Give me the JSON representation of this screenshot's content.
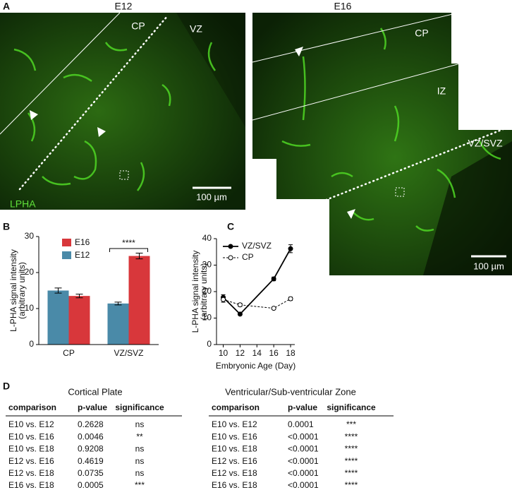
{
  "figure": {
    "panel_labels": [
      "A",
      "B",
      "C",
      "D"
    ],
    "images": [
      {
        "title": "E12",
        "labels": [
          "CP",
          "VZ",
          "LPHA"
        ],
        "scale_bar": "100 µm"
      },
      {
        "title": "E16",
        "labels": [
          "CP",
          "IZ",
          "VZ/SVZ"
        ],
        "scale_bar": "100 µm"
      }
    ]
  },
  "chart_data": [
    {
      "type": "bar",
      "y_label": [
        "L-PHA signal intensity",
        "(arbitrary units)"
      ],
      "categories": [
        "CP",
        "VZ/SVZ"
      ],
      "series": [
        {
          "name": "E16",
          "color": "#d8373b",
          "values": [
            13.5,
            24.6
          ],
          "errors": [
            0.5,
            0.8
          ]
        },
        {
          "name": "E12",
          "color": "#4a8aa8",
          "values": [
            15,
            11.4
          ],
          "errors": [
            0.7,
            0.4
          ]
        }
      ],
      "ylim": [
        0,
        30
      ],
      "yticks": [
        0,
        10,
        20,
        30
      ],
      "annotation": "****"
    },
    {
      "type": "line",
      "x_label": "Embryonic Age (Day)",
      "y_label": [
        "L-PHA signal intensity",
        "(arbitrary units)"
      ],
      "x": [
        10,
        12,
        16,
        18
      ],
      "series": [
        {
          "name": "VZ/SVZ",
          "color": "#000000",
          "dashed": false,
          "filled": true,
          "values": [
            17.8,
            11.5,
            24.8,
            36.2
          ],
          "errors": [
            1,
            0.4,
            0.7,
            1.5
          ]
        },
        {
          "name": "CP",
          "color": "#000000",
          "dashed": true,
          "filled": false,
          "values": [
            17,
            15,
            13.7,
            17.3
          ],
          "errors": [
            1,
            0.6,
            0.4,
            0.6
          ]
        }
      ],
      "xlim": [
        9.2,
        18.5
      ],
      "xticks": [
        10,
        12,
        14,
        16,
        18
      ],
      "ylim": [
        0,
        40
      ],
      "yticks": [
        0,
        10,
        20,
        30,
        40
      ]
    }
  ],
  "tables": [
    {
      "title": "Cortical Plate",
      "columns": [
        "comparison",
        "p-value",
        "significance"
      ],
      "rows": [
        [
          "E10 vs. E12",
          "0.2628",
          "ns"
        ],
        [
          "E10 vs. E16",
          "0.0046",
          "**"
        ],
        [
          "E10 vs. E18",
          "0.9208",
          "ns"
        ],
        [
          "E12 vs. E16",
          "0.4619",
          "ns"
        ],
        [
          "E12 vs. E18",
          "0.0735",
          "ns"
        ],
        [
          "E16 vs. E18",
          "0.0005",
          "***"
        ]
      ]
    },
    {
      "title": "Ventricular/Sub-ventricular Zone",
      "columns": [
        "comparison",
        "p-value",
        "significance"
      ],
      "rows": [
        [
          "E10 vs. E12",
          "0.0001",
          "***"
        ],
        [
          "E10 vs. E16",
          "<0.0001",
          "****"
        ],
        [
          "E10 vs. E18",
          "<0.0001",
          "****"
        ],
        [
          "E12 vs. E16",
          "<0.0001",
          "****"
        ],
        [
          "E12 vs. E18",
          "<0.0001",
          "****"
        ],
        [
          "E16 vs. E18",
          "<0.0001",
          "****"
        ]
      ]
    }
  ]
}
